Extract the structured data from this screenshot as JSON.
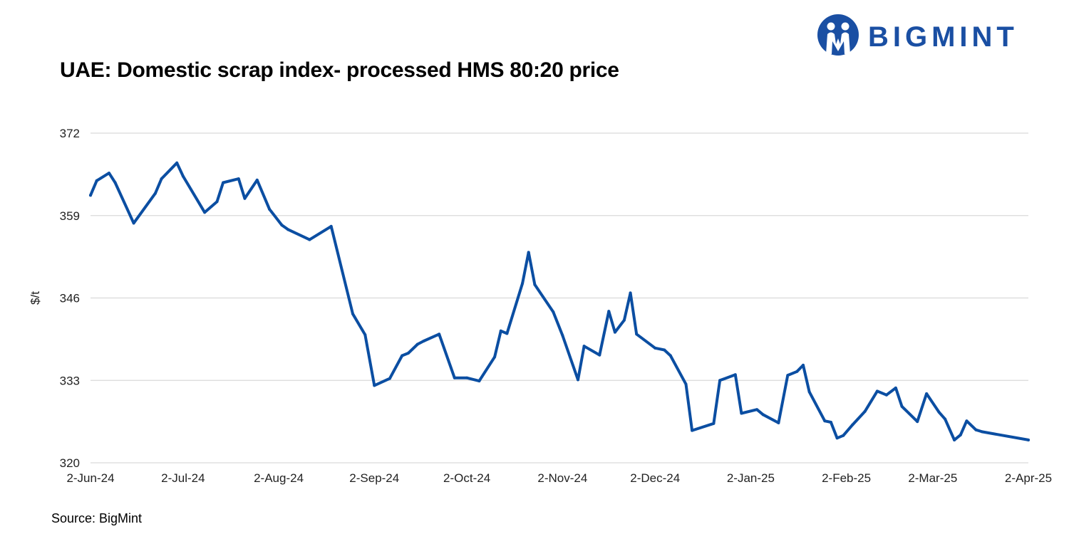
{
  "brand": {
    "name": "BIGMINT",
    "color": "#1a4fa3"
  },
  "source": "Source: BigMint",
  "chart_data": {
    "type": "line",
    "title": "UAE: Domestic scrap index- processed HMS 80:20 price",
    "ylabel": "$/t",
    "xlabel": "",
    "ylim": [
      320,
      372
    ],
    "yticks": [
      320,
      333,
      346,
      359,
      372
    ],
    "xlim": [
      "2024-06-02",
      "2025-04-02"
    ],
    "xticks": [
      {
        "date": "2024-06-02",
        "label": "2-Jun-24"
      },
      {
        "date": "2024-07-02",
        "label": "2-Jul-24"
      },
      {
        "date": "2024-08-02",
        "label": "2-Aug-24"
      },
      {
        "date": "2024-09-02",
        "label": "2-Sep-24"
      },
      {
        "date": "2024-10-02",
        "label": "2-Oct-24"
      },
      {
        "date": "2024-11-02",
        "label": "2-Nov-24"
      },
      {
        "date": "2024-12-02",
        "label": "2-Dec-24"
      },
      {
        "date": "2025-01-02",
        "label": "2-Jan-25"
      },
      {
        "date": "2025-02-02",
        "label": "2-Feb-25"
      },
      {
        "date": "2025-03-02",
        "label": "2-Mar-25"
      },
      {
        "date": "2025-04-02",
        "label": "2-Apr-25"
      }
    ],
    "grid": true,
    "line_color": "#0b4ea2",
    "series": [
      {
        "x": [
          "2024-06-02",
          "2024-06-04",
          "2024-06-08",
          "2024-06-10",
          "2024-06-16",
          "2024-06-23",
          "2024-06-25",
          "2024-06-30",
          "2024-07-02",
          "2024-07-09",
          "2024-07-13",
          "2024-07-15",
          "2024-07-20",
          "2024-07-22",
          "2024-07-26",
          "2024-07-30",
          "2024-08-03",
          "2024-08-05",
          "2024-08-12",
          "2024-08-19",
          "2024-08-26",
          "2024-08-30",
          "2024-09-02",
          "2024-09-07",
          "2024-09-11",
          "2024-09-13",
          "2024-09-16",
          "2024-09-18",
          "2024-09-23",
          "2024-09-28",
          "2024-10-02",
          "2024-10-06",
          "2024-10-11",
          "2024-10-13",
          "2024-10-15",
          "2024-10-20",
          "2024-10-22",
          "2024-10-24",
          "2024-10-30",
          "2024-11-02",
          "2024-11-07",
          "2024-11-09",
          "2024-11-14",
          "2024-11-17",
          "2024-11-19",
          "2024-11-22",
          "2024-11-24",
          "2024-11-26",
          "2024-12-02",
          "2024-12-05",
          "2024-12-07",
          "2024-12-12",
          "2024-12-14",
          "2024-12-21",
          "2024-12-23",
          "2024-12-28",
          "2024-12-30",
          "2025-01-04",
          "2025-01-06",
          "2025-01-11",
          "2025-01-14",
          "2025-01-17",
          "2025-01-19",
          "2025-01-21",
          "2025-01-26",
          "2025-01-28",
          "2025-01-30",
          "2025-02-01",
          "2025-02-04",
          "2025-02-08",
          "2025-02-12",
          "2025-02-15",
          "2025-02-18",
          "2025-02-20",
          "2025-02-25",
          "2025-02-28",
          "2025-03-04",
          "2025-03-06",
          "2025-03-09",
          "2025-03-11",
          "2025-03-13",
          "2025-03-16",
          "2025-03-18",
          "2025-04-02"
        ],
        "y": [
          362.2,
          364.5,
          365.7,
          364.2,
          357.8,
          362.5,
          364.8,
          367.3,
          365.2,
          359.5,
          361.2,
          364.2,
          364.8,
          361.7,
          364.6,
          360.0,
          357.5,
          356.8,
          355.2,
          357.3,
          343.5,
          340.2,
          332.2,
          333.3,
          336.9,
          337.3,
          338.7,
          339.2,
          340.3,
          333.4,
          333.4,
          332.9,
          336.7,
          340.8,
          340.4,
          348.3,
          353.2,
          348.1,
          343.8,
          340.1,
          333.1,
          338.4,
          337.0,
          343.9,
          340.6,
          342.5,
          346.8,
          340.3,
          338.1,
          337.8,
          336.9,
          332.4,
          325.1,
          326.2,
          333.0,
          333.9,
          327.8,
          328.4,
          327.6,
          326.3,
          333.8,
          334.4,
          335.4,
          331.2,
          326.6,
          326.4,
          323.9,
          324.3,
          326.0,
          328.1,
          331.3,
          330.7,
          331.8,
          328.9,
          326.5,
          330.9,
          328.0,
          326.9,
          323.6,
          324.4,
          326.6,
          325.2,
          324.9,
          323.6
        ]
      }
    ]
  }
}
